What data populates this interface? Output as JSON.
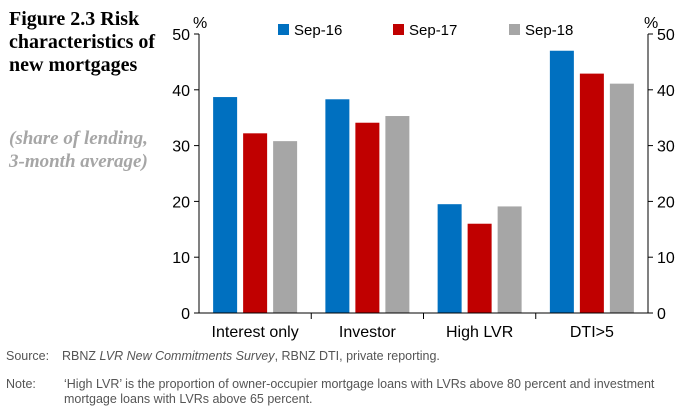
{
  "figure": {
    "title": "Figure 2.3 Risk characteristics of new mortgages",
    "subtitle": "(share of lending, 3-month average)"
  },
  "chart_data": {
    "type": "bar",
    "categories": [
      "Interest only",
      "Investor",
      "High LVR",
      "DTI>5"
    ],
    "series": [
      {
        "name": "Sep-16",
        "color": "#0070c0",
        "values": [
          38.7,
          38.3,
          19.5,
          47.0
        ]
      },
      {
        "name": "Sep-17",
        "color": "#c00000",
        "values": [
          32.2,
          34.1,
          16.0,
          42.9
        ]
      },
      {
        "name": "Sep-18",
        "color": "#a6a6a6",
        "values": [
          30.8,
          35.3,
          19.1,
          41.1
        ]
      }
    ],
    "ylabel": "%",
    "y2label": "%",
    "ylim": [
      0,
      50
    ],
    "yticks": [
      0,
      10,
      20,
      30,
      40,
      50
    ],
    "legend_position": "top",
    "grid": false
  },
  "source": {
    "label": "Source:",
    "text_1": "RBNZ ",
    "italic": "LVR New Commitments Survey",
    "text_2": ", RBNZ DTI, private reporting."
  },
  "note": {
    "label": "Note:",
    "text": "‘High LVR’ is the proportion of owner-occupier mortgage loans with LVRs above 80 percent and investment mortgage loans with LVRs above 65 percent."
  }
}
